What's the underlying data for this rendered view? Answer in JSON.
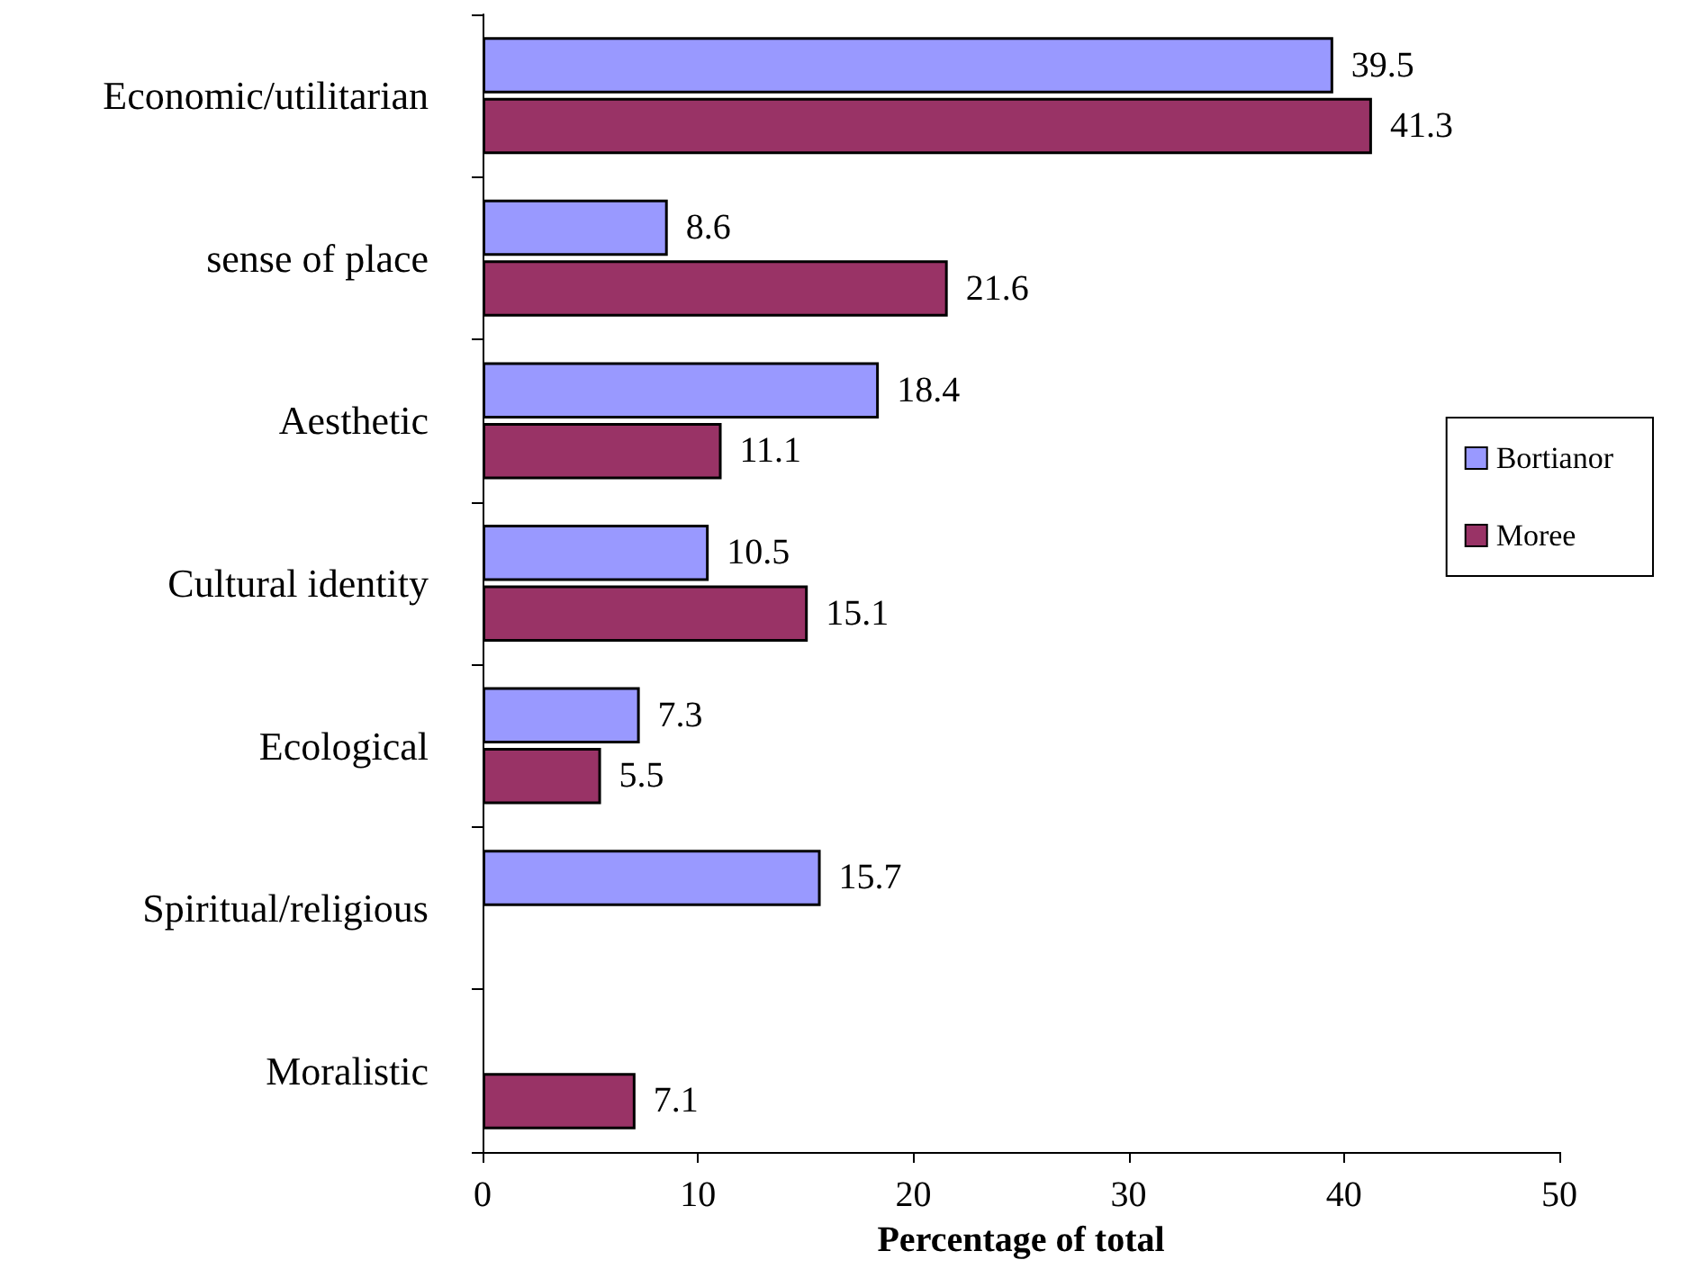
{
  "chart_data": {
    "type": "bar",
    "orientation": "horizontal",
    "xlabel": "Percentage of total",
    "categories": [
      "Economic/utilitarian",
      "sense of place",
      "Aesthetic",
      "Cultural identity",
      "Ecological",
      "Spiritual/religious",
      "Moralistic"
    ],
    "series": [
      {
        "name": "Bortianor",
        "color": "#9999ff",
        "values": [
          39.5,
          8.6,
          18.4,
          10.5,
          7.3,
          15.7,
          null
        ]
      },
      {
        "name": "Moree",
        "color": "#993366",
        "values": [
          41.3,
          21.6,
          11.1,
          15.1,
          5.5,
          null,
          7.1
        ]
      }
    ],
    "xlim": [
      0,
      50
    ],
    "xticks": [
      0,
      10,
      20,
      30,
      40,
      50
    ],
    "grid": false,
    "legend": "right",
    "data_labels": true
  }
}
